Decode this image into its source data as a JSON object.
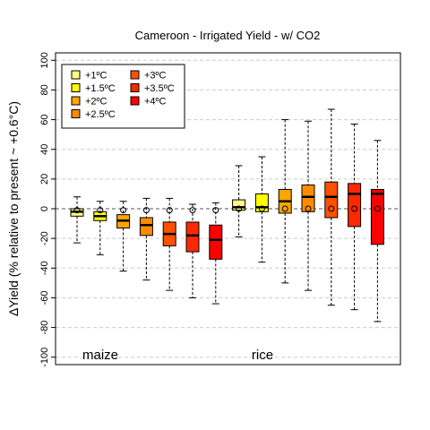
{
  "chart_data": {
    "type": "box",
    "title": "Cameroon - Irrigated Yield - w/ CO2",
    "ylabel": "ΔYield (% relative to present ~ +0.6°C)",
    "ylim": [
      -105,
      105
    ],
    "yticks": [
      -100,
      -80,
      -60,
      -40,
      -20,
      0,
      20,
      40,
      60,
      80,
      100
    ],
    "grid": true,
    "legend_position": "top-left",
    "groups": [
      {
        "label": "maize",
        "start": 1
      },
      {
        "label": "rice",
        "start": 8
      }
    ],
    "series": [
      {
        "name": "+1ºC",
        "color": "#FFFF80"
      },
      {
        "name": "+1.5ºC",
        "color": "#FFFF00"
      },
      {
        "name": "+2ºC",
        "color": "#FFA500"
      },
      {
        "name": "+2.5ºC",
        "color": "#FF8C00"
      },
      {
        "name": "+3ºC",
        "color": "#FF5000"
      },
      {
        "name": "+3.5ºC",
        "color": "#FF2800"
      },
      {
        "name": "+4ºC",
        "color": "#FF0000"
      }
    ],
    "boxes": [
      {
        "crop": "maize",
        "series": 0,
        "whisker_low": -23,
        "q1": -5,
        "median": -2,
        "q3": 0,
        "whisker_high": 8,
        "mean": -1
      },
      {
        "crop": "maize",
        "series": 1,
        "whisker_low": -31,
        "q1": -8,
        "median": -5,
        "q3": -2,
        "whisker_high": 5,
        "mean": -1
      },
      {
        "crop": "maize",
        "series": 2,
        "whisker_low": -42,
        "q1": -13,
        "median": -8,
        "q3": -4,
        "whisker_high": 5,
        "mean": -1
      },
      {
        "crop": "maize",
        "series": 3,
        "whisker_low": -48,
        "q1": -18,
        "median": -11,
        "q3": -6,
        "whisker_high": 7,
        "mean": -1
      },
      {
        "crop": "maize",
        "series": 4,
        "whisker_low": -55,
        "q1": -25,
        "median": -17,
        "q3": -9,
        "whisker_high": 7,
        "mean": -1
      },
      {
        "crop": "maize",
        "series": 5,
        "whisker_low": -60,
        "q1": -29,
        "median": -18,
        "q3": -9,
        "whisker_high": 3,
        "mean": -1
      },
      {
        "crop": "maize",
        "series": 6,
        "whisker_low": -64,
        "q1": -34,
        "median": -21,
        "q3": -11,
        "whisker_high": 4,
        "mean": -1
      },
      {
        "crop": "rice",
        "series": 0,
        "whisker_low": -19,
        "q1": -1,
        "median": 1,
        "q3": 6,
        "whisker_high": 29,
        "mean": 0
      },
      {
        "crop": "rice",
        "series": 1,
        "whisker_low": -36,
        "q1": -2,
        "median": 1,
        "q3": 10,
        "whisker_high": 35,
        "mean": 0
      },
      {
        "crop": "rice",
        "series": 2,
        "whisker_low": -50,
        "q1": -3,
        "median": 5,
        "q3": 13,
        "whisker_high": 60,
        "mean": 0
      },
      {
        "crop": "rice",
        "series": 3,
        "whisker_low": -55,
        "q1": -2,
        "median": 8,
        "q3": 16,
        "whisker_high": 59,
        "mean": 0
      },
      {
        "crop": "rice",
        "series": 4,
        "whisker_low": -65,
        "q1": -6,
        "median": 8,
        "q3": 18,
        "whisker_high": 67,
        "mean": 0
      },
      {
        "crop": "rice",
        "series": 5,
        "whisker_low": -68,
        "q1": -12,
        "median": 10,
        "q3": 17,
        "whisker_high": 57,
        "mean": 0
      },
      {
        "crop": "rice",
        "series": 6,
        "whisker_low": -76,
        "q1": -24,
        "median": 10,
        "q3": 13,
        "whisker_high": 46,
        "mean": 0
      }
    ]
  }
}
